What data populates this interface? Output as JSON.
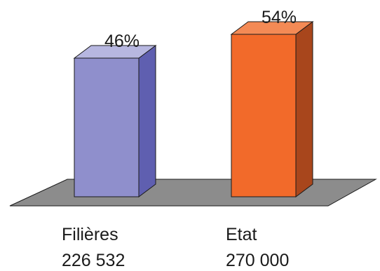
{
  "chart_data": {
    "type": "bar",
    "style": "3d-columns",
    "title": "",
    "xlabel": "",
    "ylabel": "",
    "categories": [
      "Filières",
      "Etat"
    ],
    "values": [
      226532,
      270000
    ],
    "value_labels": [
      "226 532",
      "270 000"
    ],
    "percent_labels": [
      "46%",
      "54%"
    ],
    "percents": [
      46,
      54
    ],
    "grid": false,
    "legend": "none",
    "colors": {
      "bars": [
        "#8f8fcc",
        "#f26a2a"
      ],
      "bar_sides": [
        "#5f5fb0",
        "#a8461c"
      ],
      "bar_tops": [
        "#b7b7e0",
        "#f48a55"
      ],
      "floor": "#8c8c8c",
      "outline": "#1a1a1a"
    }
  }
}
